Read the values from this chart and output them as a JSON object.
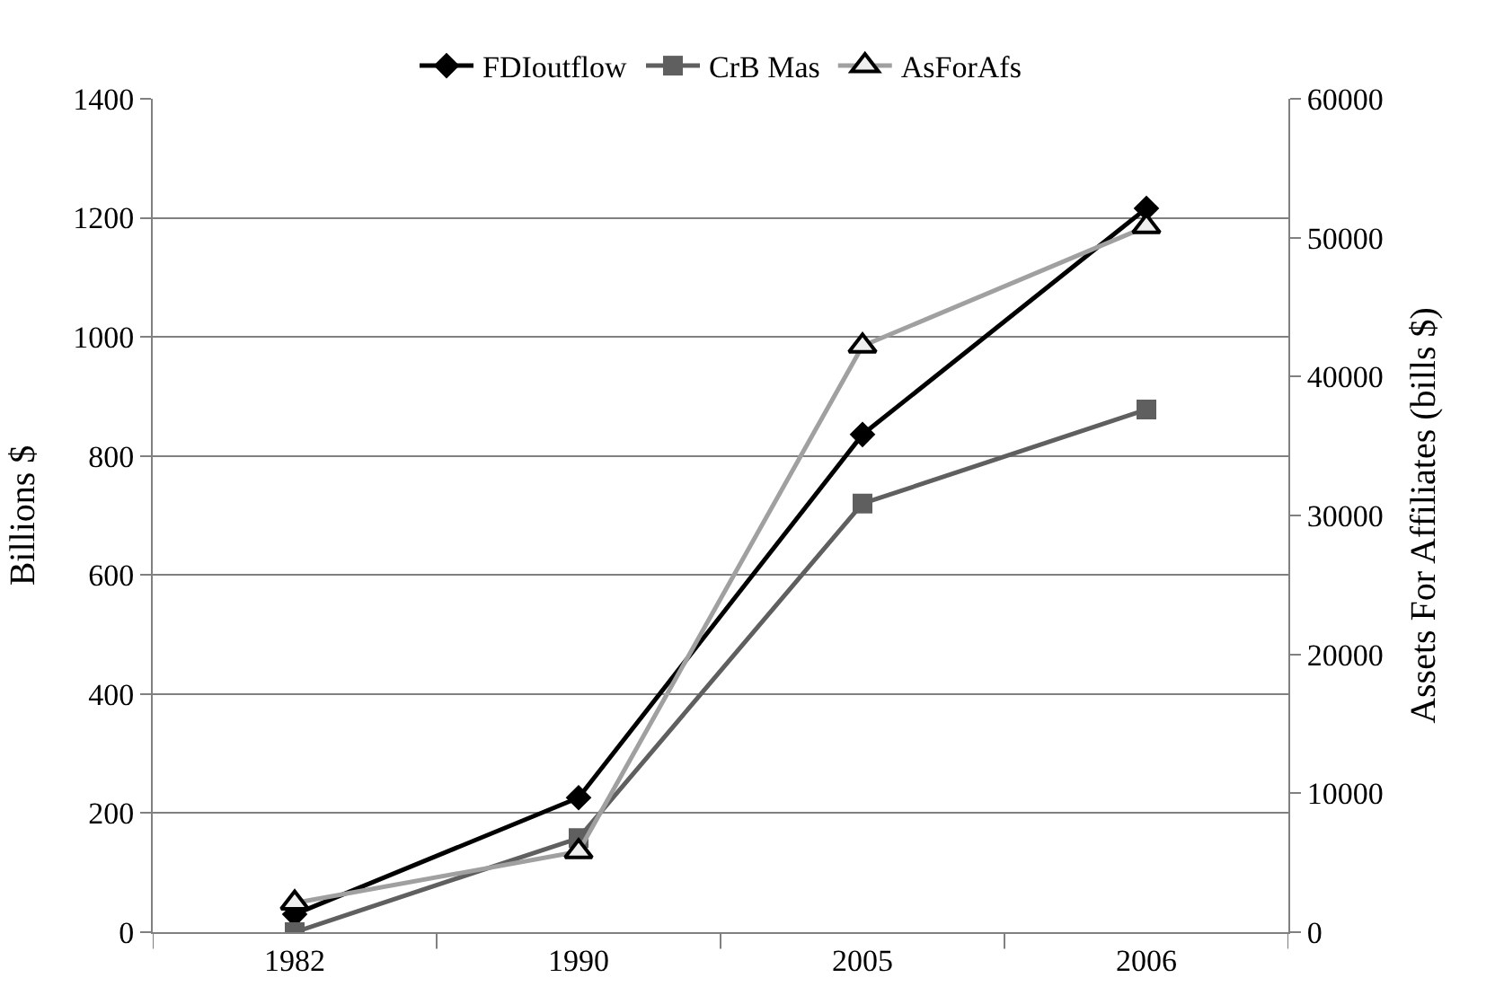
{
  "chart_data": {
    "type": "line",
    "categories": [
      "1982",
      "1990",
      "2005",
      "2006"
    ],
    "series": [
      {
        "name": "FDIoutflow",
        "color": "#000000",
        "values": [
          30,
          226,
          836,
          1216
        ],
        "marker": "diamond"
      },
      {
        "name": "CrB Mas",
        "color": "#5f5f5f",
        "values": [
          0,
          158,
          720,
          878
        ],
        "marker": "square"
      },
      {
        "name": "AsForAfs",
        "color": "#a0a0a0",
        "values": [
          2100,
          5800,
          42200,
          50800
        ],
        "marker": "triangle",
        "axis": "y2"
      }
    ],
    "ylabel": "Billions $",
    "y2label": "Assets For Affiliates (bills $)",
    "ylim": [
      0,
      1400
    ],
    "yticks": [
      0,
      200,
      400,
      600,
      800,
      1000,
      1200,
      1400
    ],
    "y2lim": [
      0,
      60000
    ],
    "y2ticks": [
      0,
      10000,
      20000,
      30000,
      40000,
      50000,
      60000
    ],
    "grid": "y",
    "legend": "top"
  }
}
